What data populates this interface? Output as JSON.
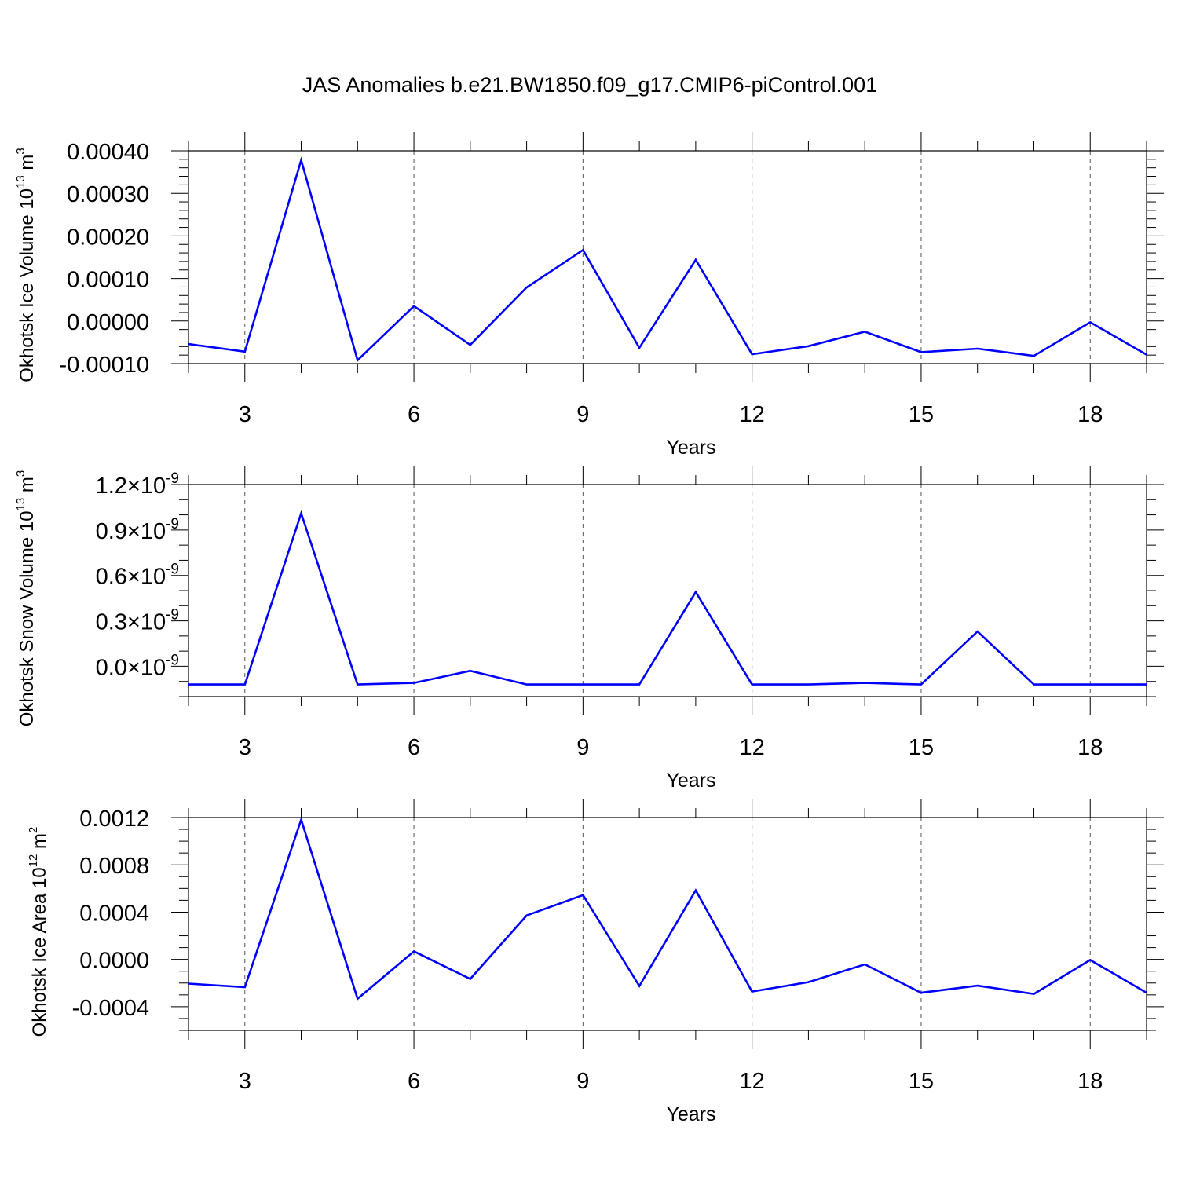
{
  "title": "JAS Anomalies b.e21.BW1850.f09_g17.CMIP6-piControl.001",
  "colors": {
    "line": "#0000ff",
    "axis": "#000000",
    "grid": "#555555"
  },
  "chart_data": [
    {
      "type": "line",
      "ylabel": {
        "text": "Okhotsk Ice Volume 10",
        "exp": "13",
        "unit": " m",
        "unit_exp": "3"
      },
      "xlabel": "Years",
      "xlim": [
        2,
        19
      ],
      "ylim": [
        -0.0001,
        0.0004
      ],
      "x_ticks": [
        3,
        6,
        9,
        12,
        15,
        18
      ],
      "x_tick_labels": [
        "3",
        "6",
        "9",
        "12",
        "15",
        "18"
      ],
      "y_ticks": [
        -0.0001,
        0.0,
        0.0001,
        0.0002,
        0.0003,
        0.0004
      ],
      "y_tick_labels": [
        "-0.00010",
        "0.00000",
        "0.00010",
        "0.00020",
        "0.00030",
        "0.00040"
      ],
      "y_minor_step": 2e-05,
      "grid": "vertical dashed",
      "series": [
        {
          "x": [
            2,
            3,
            4,
            5,
            6,
            7,
            8,
            9,
            10,
            11,
            12,
            13,
            14,
            15,
            16,
            17,
            18,
            19
          ],
          "values": [
            -5.4e-05,
            -7.2e-05,
            0.000378,
            -9.2e-05,
            3.5e-05,
            -5.6e-05,
            7.9e-05,
            0.000167,
            -6.3e-05,
            0.000144,
            -7.8e-05,
            -5.9e-05,
            -2.5e-05,
            -7.3e-05,
            -6.5e-05,
            -8.2e-05,
            -3e-06,
            -7.9e-05
          ]
        }
      ]
    },
    {
      "type": "line",
      "ylabel": {
        "text": "Okhotsk Snow Volume 10",
        "exp": "13",
        "unit": " m",
        "unit_exp": "3"
      },
      "xlabel": "Years",
      "xlim": [
        2,
        19
      ],
      "ylim": [
        -2e-10,
        1.2e-09
      ],
      "x_ticks": [
        3,
        6,
        9,
        12,
        15,
        18
      ],
      "x_tick_labels": [
        "3",
        "6",
        "9",
        "12",
        "15",
        "18"
      ],
      "y_ticks": [
        0.0,
        3e-10,
        6e-10,
        9e-10,
        1.2e-09
      ],
      "y_tick_labels": [
        {
          "mant": "0.0",
          "exp": "-9"
        },
        {
          "mant": "0.3",
          "exp": "-9"
        },
        {
          "mant": "0.6",
          "exp": "-9"
        },
        {
          "mant": "0.9",
          "exp": "-9"
        },
        {
          "mant": "1.2",
          "exp": "-9"
        }
      ],
      "y_minor_step": 1e-10,
      "grid": "vertical dashed",
      "series": [
        {
          "x": [
            2,
            3,
            4,
            5,
            6,
            7,
            8,
            9,
            10,
            11,
            12,
            13,
            14,
            15,
            16,
            17,
            18,
            19
          ],
          "values": [
            -1.2e-10,
            -1.2e-10,
            1.01e-09,
            -1.2e-10,
            -1.1e-10,
            -3e-11,
            -1.2e-10,
            -1.2e-10,
            -1.2e-10,
            4.9e-10,
            -1.2e-10,
            -1.2e-10,
            -1.1e-10,
            -1.2e-10,
            2.3e-10,
            -1.2e-10,
            -1.2e-10,
            -1.2e-10
          ]
        }
      ]
    },
    {
      "type": "line",
      "ylabel": {
        "text": "Okhotsk Ice Area 10",
        "exp": "12",
        "unit": " m",
        "unit_exp": "2"
      },
      "xlabel": "Years",
      "xlim": [
        2,
        19
      ],
      "ylim": [
        -0.0006,
        0.0012
      ],
      "x_ticks": [
        3,
        6,
        9,
        12,
        15,
        18
      ],
      "x_tick_labels": [
        "3",
        "6",
        "9",
        "12",
        "15",
        "18"
      ],
      "y_ticks": [
        -0.0004,
        0.0,
        0.0004,
        0.0008,
        0.0012
      ],
      "y_tick_labels": [
        "-0.0004",
        "0.0000",
        "0.0004",
        "0.0008",
        "0.0012"
      ],
      "y_minor_step": 0.0001,
      "grid": "vertical dashed",
      "series": [
        {
          "x": [
            2,
            3,
            4,
            5,
            6,
            7,
            8,
            9,
            10,
            11,
            12,
            13,
            14,
            15,
            16,
            17,
            18,
            19
          ],
          "values": [
            -0.000205,
            -0.000235,
            0.001182,
            -0.000333,
            6.8e-05,
            -0.000165,
            0.000372,
            0.000544,
            -0.000225,
            0.000584,
            -0.000272,
            -0.000192,
            -4.2e-05,
            -0.000282,
            -0.000222,
            -0.000292,
            -5e-06,
            -0.000282
          ]
        }
      ]
    }
  ]
}
